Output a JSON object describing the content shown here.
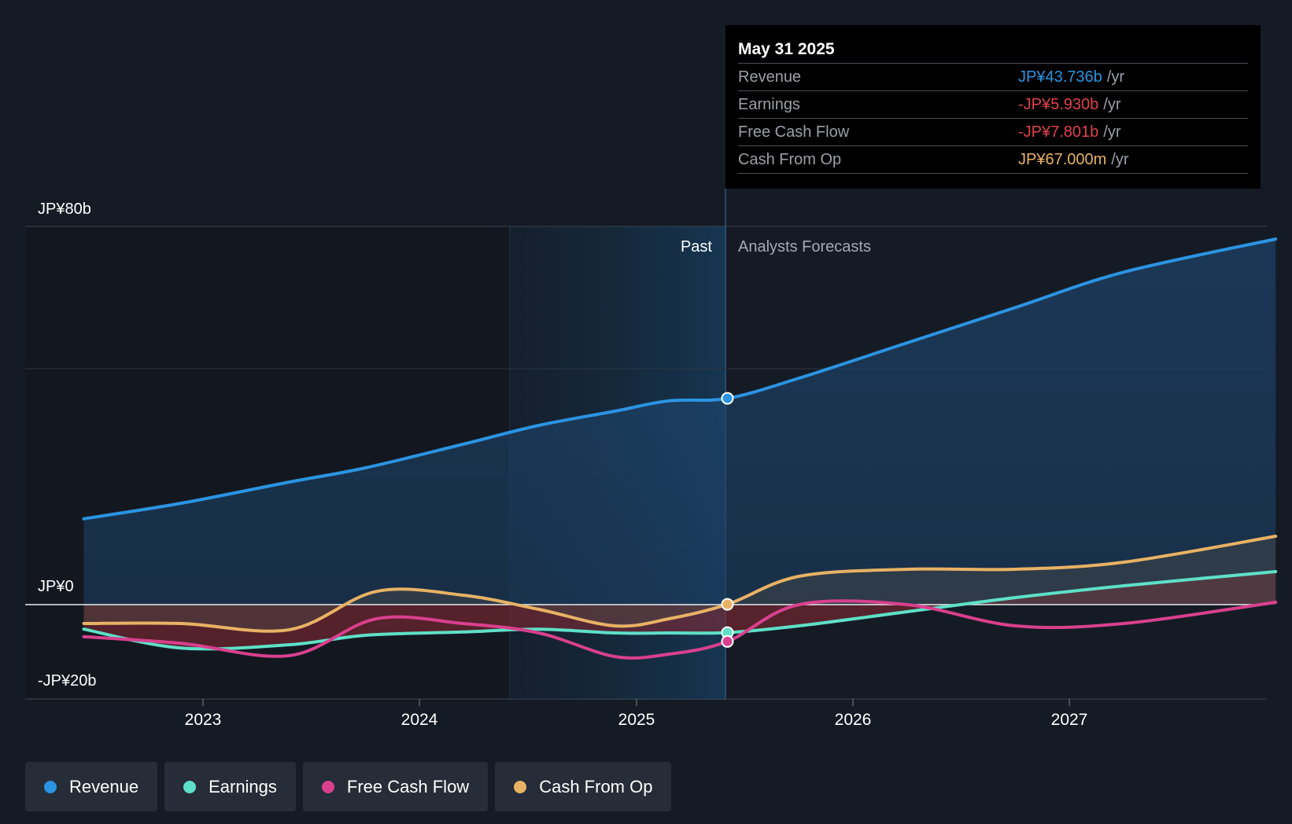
{
  "chart_data": {
    "type": "line",
    "y_axis": {
      "min": -20,
      "max": 80,
      "tick_labels": [
        "JP¥80b",
        "JP¥0",
        "-JP¥20b"
      ]
    },
    "x_axis": {
      "tick_labels": [
        "2023",
        "2024",
        "2025",
        "2026",
        "2027"
      ]
    },
    "divider_labels": {
      "past": "Past",
      "forecast": "Analysts Forecasts"
    },
    "series": [
      {
        "name": "Revenue",
        "color": "#2b94e2",
        "points": [
          [
            2022.45,
            18.2
          ],
          [
            2022.9,
            21.5
          ],
          [
            2023.4,
            26
          ],
          [
            2023.75,
            29
          ],
          [
            2024.2,
            34
          ],
          [
            2024.55,
            38
          ],
          [
            2024.9,
            41
          ],
          [
            2025.15,
            43.2
          ],
          [
            2025.42,
            43.736
          ],
          [
            2025.75,
            48
          ],
          [
            2026.25,
            55.5
          ],
          [
            2026.75,
            63
          ],
          [
            2027.25,
            70.5
          ],
          [
            2027.95,
            77.5
          ]
        ]
      },
      {
        "name": "Earnings",
        "color": "#5ee0c8",
        "points": [
          [
            2022.45,
            -5.2
          ],
          [
            2022.9,
            -9.2
          ],
          [
            2023.4,
            -8.5
          ],
          [
            2023.75,
            -6.5
          ],
          [
            2024.2,
            -5.8
          ],
          [
            2024.55,
            -5.2
          ],
          [
            2024.9,
            -6
          ],
          [
            2025.15,
            -6
          ],
          [
            2025.42,
            -5.93
          ],
          [
            2025.75,
            -4.5
          ],
          [
            2026.25,
            -1.5
          ],
          [
            2026.75,
            1.5
          ],
          [
            2027.25,
            4
          ],
          [
            2027.95,
            7
          ]
        ]
      },
      {
        "name": "Free Cash Flow",
        "color": "#d9408e",
        "points": [
          [
            2022.45,
            -6.8
          ],
          [
            2022.9,
            -8.2
          ],
          [
            2023.4,
            -10.8
          ],
          [
            2023.8,
            -3
          ],
          [
            2024.2,
            -4
          ],
          [
            2024.55,
            -6
          ],
          [
            2024.9,
            -11
          ],
          [
            2025.15,
            -10.5
          ],
          [
            2025.42,
            -7.801
          ],
          [
            2025.75,
            0
          ],
          [
            2026.25,
            0
          ],
          [
            2026.75,
            -4.5
          ],
          [
            2027.25,
            -4
          ],
          [
            2027.95,
            0.5
          ]
        ]
      },
      {
        "name": "Cash From Op",
        "color": "#e8b264",
        "points": [
          [
            2022.45,
            -4
          ],
          [
            2022.9,
            -4
          ],
          [
            2023.4,
            -5.3
          ],
          [
            2023.8,
            2.8
          ],
          [
            2024.2,
            2
          ],
          [
            2024.55,
            -1
          ],
          [
            2024.9,
            -4.5
          ],
          [
            2025.15,
            -3
          ],
          [
            2025.42,
            0.067
          ],
          [
            2025.75,
            6
          ],
          [
            2026.25,
            7.5
          ],
          [
            2026.75,
            7.5
          ],
          [
            2027.25,
            9
          ],
          [
            2027.95,
            14.5
          ]
        ]
      }
    ]
  },
  "tooltip": {
    "date": "May 31 2025",
    "rows": [
      {
        "label": "Revenue",
        "value": "JP¥43.736b",
        "unit": "/yr",
        "color": "#2b94e2"
      },
      {
        "label": "Earnings",
        "value": "-JP¥5.930b",
        "unit": "/yr",
        "color": "#e0424a"
      },
      {
        "label": "Free Cash Flow",
        "value": "-JP¥7.801b",
        "unit": "/yr",
        "color": "#e0424a"
      },
      {
        "label": "Cash From Op",
        "value": "JP¥67.000m",
        "unit": "/yr",
        "color": "#e8b264"
      }
    ]
  },
  "legend": [
    {
      "label": "Revenue",
      "color": "#2b94e2"
    },
    {
      "label": "Earnings",
      "color": "#5ee0c8"
    },
    {
      "label": "Free Cash Flow",
      "color": "#d9408e"
    },
    {
      "label": "Cash From Op",
      "color": "#e8b264"
    }
  ]
}
